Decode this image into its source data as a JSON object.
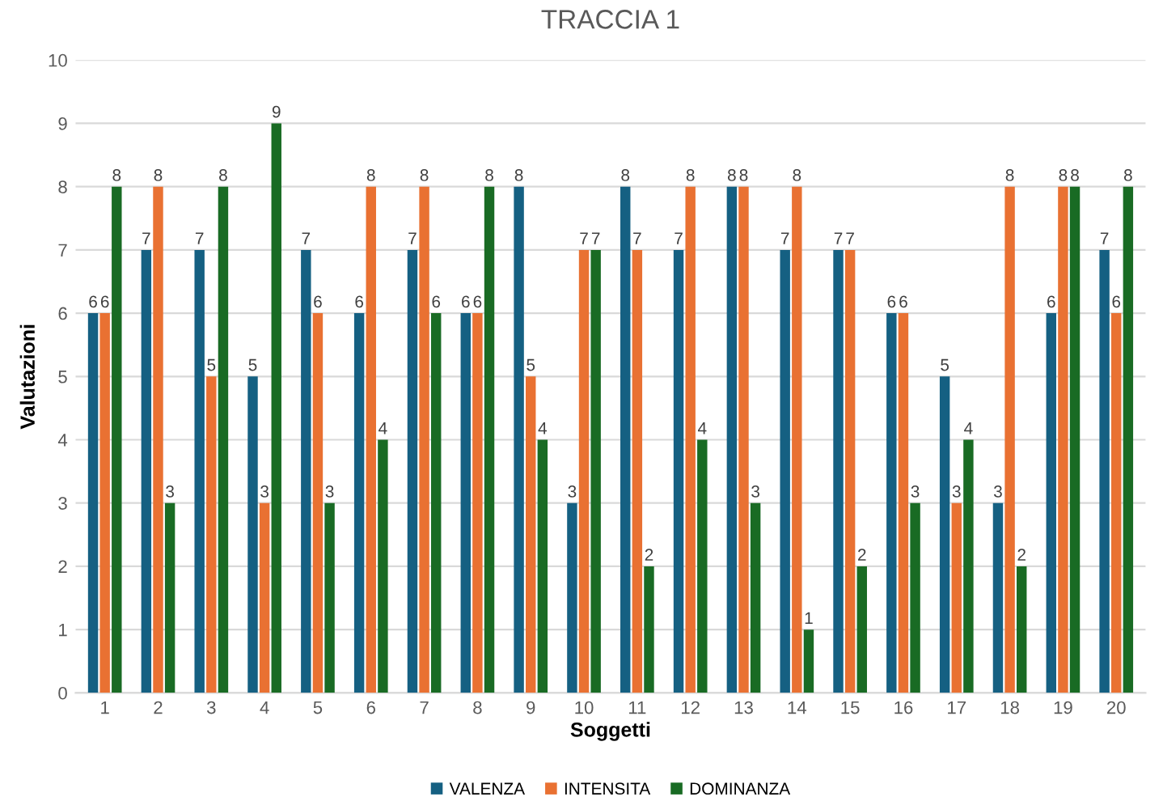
{
  "chart_data": {
    "type": "bar",
    "title": "TRACCIA 1",
    "xlabel": "Soggetti",
    "ylabel": "Valutazioni",
    "categories": [
      "1",
      "2",
      "3",
      "4",
      "5",
      "6",
      "7",
      "8",
      "9",
      "10",
      "11",
      "12",
      "13",
      "14",
      "15",
      "16",
      "17",
      "18",
      "19",
      "20"
    ],
    "series": [
      {
        "name": "VALENZA",
        "color": "#156082",
        "values": [
          6,
          7,
          7,
          5,
          7,
          6,
          7,
          6,
          8,
          3,
          8,
          7,
          8,
          7,
          7,
          6,
          5,
          3,
          6,
          7
        ]
      },
      {
        "name": "INTENSITA",
        "color": "#e97132",
        "values": [
          6,
          8,
          5,
          3,
          6,
          8,
          8,
          6,
          5,
          7,
          7,
          8,
          8,
          8,
          7,
          6,
          3,
          8,
          8,
          6
        ]
      },
      {
        "name": "DOMINANZA",
        "color": "#196b24",
        "values": [
          8,
          3,
          8,
          9,
          3,
          4,
          6,
          8,
          4,
          7,
          2,
          4,
          3,
          1,
          2,
          3,
          4,
          2,
          8,
          8
        ]
      }
    ],
    "ylim": [
      0,
      10
    ],
    "yticks": [
      0,
      1,
      2,
      3,
      4,
      5,
      6,
      7,
      8,
      9,
      10
    ],
    "grid": "y",
    "legend": "bottom",
    "data_labels": true
  }
}
